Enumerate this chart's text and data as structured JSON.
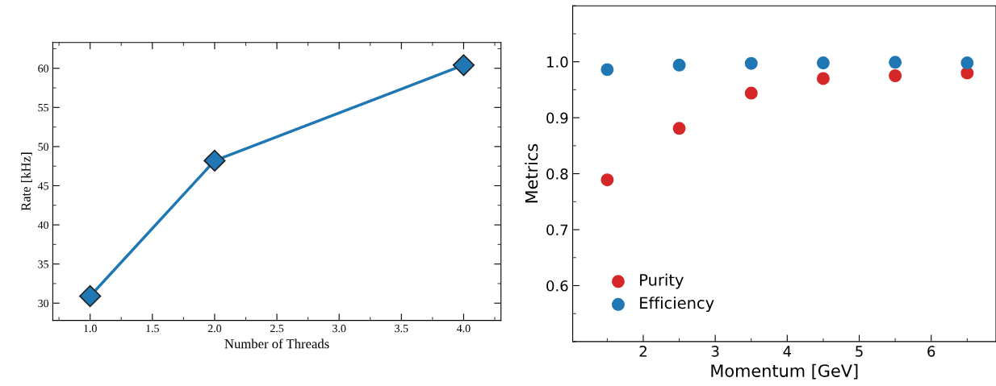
{
  "chart_data": [
    {
      "type": "line",
      "xlabel": "Number of Threads",
      "ylabel": "Rate [kHz]",
      "x": [
        1,
        2,
        4
      ],
      "series": [
        {
          "color": "#1f77b4",
          "values": [
            30.9,
            48.2,
            60.4
          ]
        }
      ],
      "xlim": [
        0.7,
        4.3
      ],
      "ylim": [
        27.8,
        63.3
      ],
      "xticks": [
        {
          "value": 1,
          "label": "1.0"
        },
        {
          "value": 1.5,
          "label": "1.5"
        },
        {
          "value": 2,
          "label": "2.0"
        },
        {
          "value": 2.5,
          "label": "2.5"
        },
        {
          "value": 3,
          "label": "3.0"
        },
        {
          "value": 3.5,
          "label": "3.5"
        },
        {
          "value": 4,
          "label": "4.0"
        }
      ],
      "yticks": [
        30,
        35,
        40,
        45,
        50,
        55,
        60
      ],
      "marker": "diamond",
      "line_style": "solid",
      "grid": false,
      "legend": false
    },
    {
      "type": "scatter",
      "xlabel": "Momentum [GeV]",
      "ylabel": "Metrics",
      "x": [
        1.5,
        2.5,
        3.5,
        4.5,
        5.5,
        6.5
      ],
      "series": [
        {
          "name": "Purity",
          "color": "#d62728",
          "values": [
            0.789,
            0.881,
            0.944,
            0.97,
            0.975,
            0.98
          ]
        },
        {
          "name": "Efficiency",
          "color": "#1f77b4",
          "values": [
            0.986,
            0.994,
            0.997,
            0.998,
            0.999,
            0.998
          ]
        }
      ],
      "xlim": [
        1.02,
        6.9
      ],
      "ylim": [
        0.5,
        1.1
      ],
      "xticks": [
        2,
        3,
        4,
        5,
        6
      ],
      "yticks": [
        {
          "value": 0.6,
          "label": "0.6"
        },
        {
          "value": 0.7,
          "label": "0.7"
        },
        {
          "value": 0.8,
          "label": "0.8"
        },
        {
          "value": 0.9,
          "label": "0.9"
        },
        {
          "value": 1.0,
          "label": "1.0"
        }
      ],
      "marker": "circle",
      "grid": false,
      "legend": "bottom left"
    }
  ]
}
